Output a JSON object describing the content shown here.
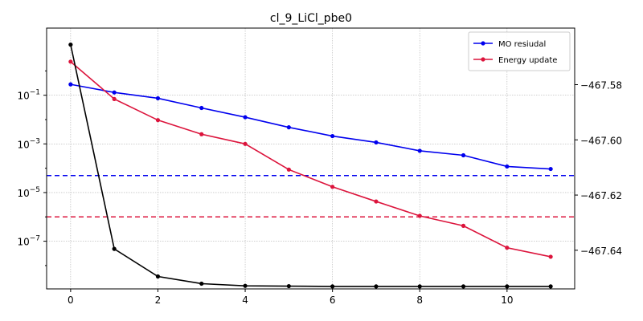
{
  "chart_data": {
    "type": "line",
    "title": "cl_9_LiCl_pbe0",
    "x": [
      0,
      1,
      2,
      3,
      4,
      5,
      6,
      7,
      8,
      9,
      10,
      11
    ],
    "xlim": [
      -0.55,
      11.55
    ],
    "xticks": [
      0,
      2,
      4,
      6,
      8,
      10
    ],
    "grid": true,
    "legend_position": "top-right",
    "left_axis": {
      "scale": "log",
      "ylim_log10": [
        -8.96,
        1.76
      ],
      "ticks": [
        {
          "exp": -1,
          "label": "10",
          "sup": "−1"
        },
        {
          "exp": -3,
          "label": "10",
          "sup": "−3"
        },
        {
          "exp": -5,
          "label": "10",
          "sup": "−5"
        },
        {
          "exp": -7,
          "label": "10",
          "sup": "−7"
        }
      ]
    },
    "right_axis": {
      "scale": "linear",
      "ylim": [
        -467.654,
        -467.5595
      ],
      "ticks": [
        {
          "value": -467.58,
          "label": "−467.58"
        },
        {
          "value": -467.6,
          "label": "−467.60"
        },
        {
          "value": -467.62,
          "label": "−467.62"
        },
        {
          "value": -467.64,
          "label": "−467.64"
        }
      ]
    },
    "series": [
      {
        "name": "MO resiudal",
        "axis": "left",
        "color": "#0000ee",
        "in_legend": true,
        "values": [
          0.28,
          0.13,
          0.075,
          0.03,
          0.0125,
          0.0048,
          0.0021,
          0.00115,
          0.00052,
          0.00034,
          0.000118,
          9.3e-05
        ]
      },
      {
        "name": "Energy update",
        "axis": "left",
        "color": "#dc143c",
        "in_legend": true,
        "values": [
          2.4,
          0.07,
          0.0095,
          0.0025,
          0.001,
          8.8e-05,
          1.72e-05,
          4.3e-06,
          1.1e-06,
          4.3e-07,
          5.4e-08,
          2.3e-08
        ]
      },
      {
        "name": "",
        "axis": "right",
        "color": "#000000",
        "in_legend": false,
        "values": [
          -467.5655,
          -467.6395,
          -467.6495,
          -467.6521,
          -467.6529,
          -467.653,
          -467.6531,
          -467.6531,
          -467.6531,
          -467.6531,
          -467.6531,
          -467.6531
        ]
      }
    ],
    "thresholds": [
      {
        "axis": "left",
        "value": 5e-05,
        "color": "#0000ee",
        "style": "dashed"
      },
      {
        "axis": "left",
        "value": 1e-06,
        "color": "#dc143c",
        "style": "dashed"
      }
    ]
  }
}
